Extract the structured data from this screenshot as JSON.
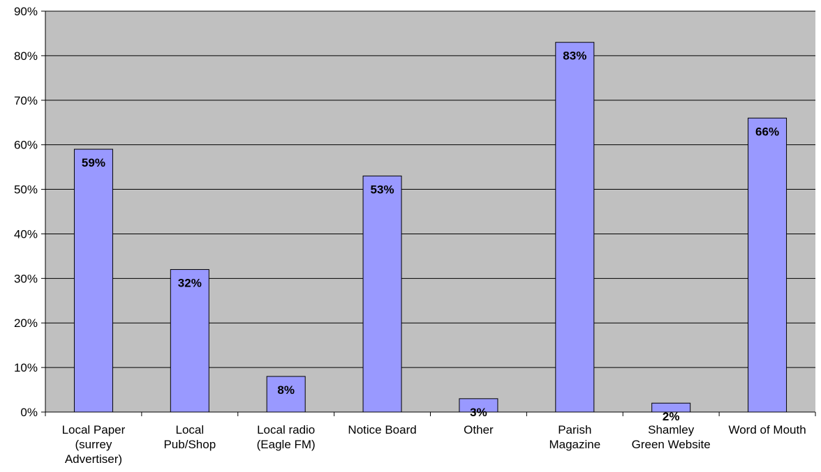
{
  "chart_data": {
    "type": "bar",
    "categories": [
      [
        "Local Paper",
        "(surrey",
        "Advertiser)"
      ],
      [
        "Local",
        "Pub/Shop"
      ],
      [
        "Local radio",
        "(Eagle FM)"
      ],
      [
        "Notice Board"
      ],
      [
        "Other"
      ],
      [
        "Parish",
        "Magazine"
      ],
      [
        "Shamley",
        "Green Website"
      ],
      [
        "Word of Mouth"
      ]
    ],
    "values": [
      59,
      32,
      8,
      53,
      3,
      83,
      2,
      66
    ],
    "data_labels": [
      "59%",
      "32%",
      "8%",
      "53%",
      "3%",
      "83%",
      "2%",
      "66%"
    ],
    "ylim": [
      0,
      90
    ],
    "yticks": [
      0,
      10,
      20,
      30,
      40,
      50,
      60,
      70,
      80,
      90
    ],
    "ytick_labels": [
      "0%",
      "10%",
      "20%",
      "30%",
      "40%",
      "50%",
      "60%",
      "70%",
      "80%",
      "90%"
    ],
    "grid": true,
    "legend": "none",
    "colors": {
      "plot_bg": "#c0c0c0",
      "bar_fill": "#9999ff",
      "bar_stroke": "#000000",
      "grid": "#000000"
    }
  }
}
